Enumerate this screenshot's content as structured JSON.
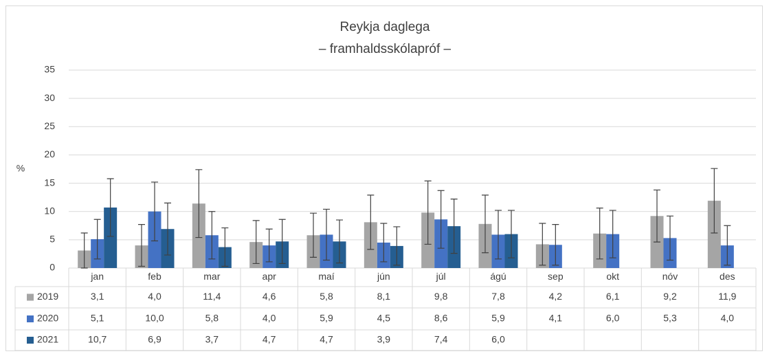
{
  "chart_data": {
    "type": "bar",
    "title": "Reykja daglega",
    "subtitle": "– framhaldsskólapróf –",
    "y_label": "%",
    "categories": [
      "jan",
      "feb",
      "mar",
      "apr",
      "maí",
      "jún",
      "júl",
      "ágú",
      "sep",
      "okt",
      "nóv",
      "des"
    ],
    "ylim": [
      0,
      35
    ],
    "yticks": [
      0,
      5,
      10,
      15,
      20,
      25,
      30,
      35
    ],
    "grid": true,
    "series": [
      {
        "name": "2019",
        "color": "#a5a5a5",
        "values": [
          3.1,
          4.0,
          11.4,
          4.6,
          5.8,
          8.1,
          9.8,
          7.8,
          4.2,
          6.1,
          9.2,
          11.9
        ],
        "value_labels": [
          "3,1",
          "4,0",
          "11,4",
          "4,6",
          "5,8",
          "8,1",
          "9,8",
          "7,8",
          "4,2",
          "6,1",
          "9,2",
          "11,9"
        ],
        "errors": [
          3.1,
          3.7,
          6.0,
          3.8,
          3.9,
          4.8,
          5.6,
          5.1,
          3.7,
          4.5,
          4.6,
          5.7
        ]
      },
      {
        "name": "2020",
        "color": "#4472c4",
        "values": [
          5.1,
          10.0,
          5.8,
          4.0,
          5.9,
          4.5,
          8.6,
          5.9,
          4.1,
          6.0,
          5.3,
          4.0
        ],
        "value_labels": [
          "5,1",
          "10,0",
          "5,8",
          "4,0",
          "5,9",
          "4,5",
          "8,6",
          "5,9",
          "4,1",
          "6,0",
          "5,3",
          "4,0"
        ],
        "errors": [
          3.5,
          5.2,
          4.2,
          2.9,
          4.5,
          3.4,
          5.1,
          4.3,
          3.6,
          4.2,
          3.9,
          3.5
        ]
      },
      {
        "name": "2021",
        "color": "#255e91",
        "values": [
          10.7,
          6.9,
          3.7,
          4.7,
          4.7,
          3.9,
          7.4,
          6.0,
          null,
          null,
          null,
          null
        ],
        "value_labels": [
          "10,7",
          "6,9",
          "3,7",
          "4,7",
          "4,7",
          "3,9",
          "7,4",
          "6,0",
          null,
          null,
          null,
          null
        ],
        "errors": [
          5.1,
          4.6,
          3.4,
          3.9,
          3.8,
          3.4,
          4.8,
          4.2,
          null,
          null,
          null,
          null
        ]
      }
    ]
  }
}
